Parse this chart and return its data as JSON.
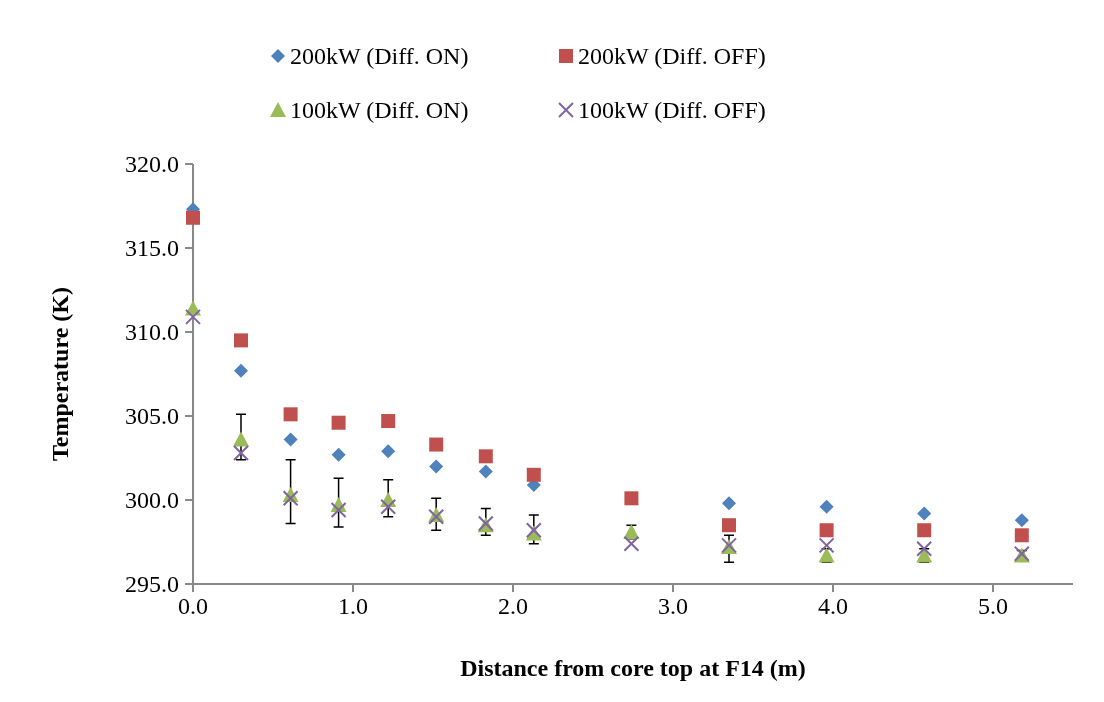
{
  "chart_data": {
    "type": "scatter",
    "xlabel": "Distance from core top at F14 (m)",
    "ylabel": "Temperature (K)",
    "xlim": [
      0,
      5.5
    ],
    "xticks": [
      {
        "value": 0,
        "label": "0.0"
      },
      {
        "value": 1,
        "label": "1.0"
      },
      {
        "value": 2,
        "label": "2.0"
      },
      {
        "value": 3,
        "label": "3.0"
      },
      {
        "value": 4,
        "label": "4.0"
      },
      {
        "value": 5,
        "label": "5.0"
      }
    ],
    "ylim": [
      295,
      320
    ],
    "yticks": [
      {
        "value": 295,
        "label": "295.0"
      },
      {
        "value": 300,
        "label": "300.0"
      },
      {
        "value": 305,
        "label": "305.0"
      },
      {
        "value": 310,
        "label": "310.0"
      },
      {
        "value": 315,
        "label": "315.0"
      },
      {
        "value": 320,
        "label": "320.0"
      }
    ],
    "x": [
      0,
      0.3,
      0.61,
      0.91,
      1.22,
      1.52,
      1.83,
      2.13,
      2.74,
      3.35,
      3.96,
      4.57,
      5.18
    ],
    "grid": false,
    "legend": "top",
    "series": [
      {
        "name": "200kW (Diff. ON)",
        "color": "#4f81bd",
        "marker": "diamond",
        "values": [
          317.3,
          307.7,
          303.6,
          302.7,
          302.9,
          302.0,
          301.7,
          300.9,
          null,
          299.8,
          299.6,
          299.2,
          298.8
        ]
      },
      {
        "name": "200kW (Diff. OFF)",
        "color": "#c0504d",
        "marker": "square",
        "values": [
          316.8,
          309.5,
          305.1,
          304.6,
          304.7,
          303.3,
          302.6,
          301.5,
          300.1,
          298.5,
          298.2,
          298.2,
          297.9
        ]
      },
      {
        "name": "100kW (Diff. ON)",
        "color": "#9bbb59",
        "marker": "triangle",
        "values": [
          311.4,
          303.6,
          300.3,
          299.7,
          300.0,
          299.1,
          298.5,
          298.0,
          298.1,
          297.2,
          296.7,
          296.7,
          296.7
        ],
        "errors": [
          null,
          [
            302.4,
            305.1
          ],
          [
            298.6,
            302.4
          ],
          [
            298.4,
            301.3
          ],
          [
            299.0,
            301.2
          ],
          [
            298.2,
            300.1
          ],
          [
            297.9,
            299.5
          ],
          [
            297.4,
            299.1
          ],
          0.4,
          [
            296.3,
            297.9
          ],
          0.4,
          0.4,
          0.3
        ]
      },
      {
        "name": "100kW (Diff. OFF)",
        "color": "#8064a2",
        "marker": "cross",
        "values": [
          310.9,
          302.8,
          300.1,
          299.4,
          299.6,
          299.0,
          298.6,
          298.2,
          297.4,
          297.3,
          297.3,
          297.1,
          296.8
        ]
      }
    ]
  }
}
